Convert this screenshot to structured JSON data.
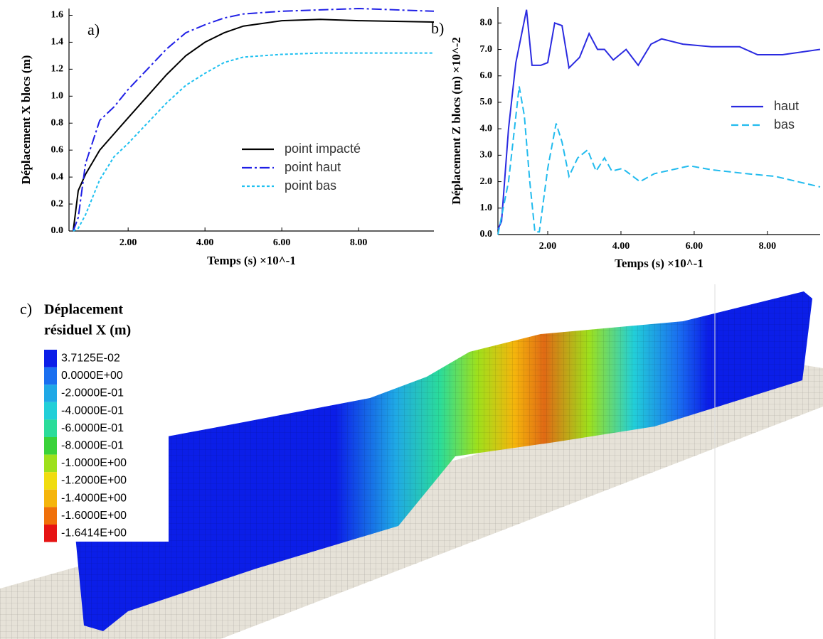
{
  "chart_data": [
    {
      "type": "line",
      "label": "a)",
      "ylabel": "Déplacement X blocs (m)",
      "xlabel": "Temps (s) ×10^-1",
      "xlim": [
        0.46,
        9.96
      ],
      "ylim": [
        0,
        1.65
      ],
      "xticks": [
        {
          "value": 2,
          "label": "2.00"
        },
        {
          "value": 4,
          "label": "4.00"
        },
        {
          "value": 6,
          "label": "6.00"
        },
        {
          "value": 8,
          "label": "8.00"
        }
      ],
      "yticks": [
        {
          "value": 0,
          "label": "0.0"
        },
        0.2,
        0.4,
        0.6,
        0.8,
        {
          "value": 1,
          "label": "1.0"
        },
        1.2,
        1.4,
        1.6
      ],
      "legend": "lower right",
      "series": [
        {
          "name": "point impacté",
          "color": "#000000",
          "dash": "solid",
          "x": [
            0.57,
            0.7,
            0.89,
            1.26,
            1.63,
            2,
            2.5,
            3,
            3.5,
            4,
            4.5,
            5,
            6,
            7,
            8,
            9.96
          ],
          "values": [
            0,
            0.3,
            0.42,
            0.6,
            0.72,
            0.84,
            1.0,
            1.16,
            1.3,
            1.4,
            1.47,
            1.52,
            1.56,
            1.57,
            1.56,
            1.55
          ]
        },
        {
          "name": "point haut",
          "color": "#1f1fe6",
          "dash": "dashdot",
          "x": [
            0.57,
            0.7,
            0.89,
            1.26,
            1.63,
            2,
            2.5,
            3,
            3.5,
            4,
            4.5,
            5,
            6,
            7,
            8,
            9.96
          ],
          "values": [
            0,
            0.1,
            0.5,
            0.82,
            0.92,
            1.05,
            1.2,
            1.35,
            1.47,
            1.53,
            1.58,
            1.61,
            1.63,
            1.64,
            1.65,
            1.63
          ]
        },
        {
          "name": "point bas",
          "color": "#1ec0f0",
          "dash": "dotted",
          "x": [
            0.57,
            0.7,
            0.89,
            1.26,
            1.63,
            2,
            2.5,
            3,
            3.5,
            4,
            4.5,
            5,
            6,
            7,
            8,
            9.96
          ],
          "values": [
            0,
            0.02,
            0.12,
            0.38,
            0.55,
            0.65,
            0.8,
            0.95,
            1.08,
            1.17,
            1.25,
            1.29,
            1.31,
            1.32,
            1.32,
            1.32
          ]
        }
      ]
    },
    {
      "type": "line",
      "label": "b)",
      "ylabel": "Déplacement Z blocs (m) ×10^-2",
      "xlabel": "Temps (s) ×10^-1",
      "xlim": [
        0.64,
        9.44
      ],
      "ylim": [
        0,
        8.6
      ],
      "xticks": [
        {
          "value": 2,
          "label": "2.00"
        },
        {
          "value": 4,
          "label": "4.00"
        },
        {
          "value": 6,
          "label": "6.00"
        },
        {
          "value": 8,
          "label": "8.00"
        }
      ],
      "yticks": [
        {
          "value": 0,
          "label": "0.0"
        },
        {
          "value": 1,
          "label": "1.0"
        },
        {
          "value": 2,
          "label": "2.0"
        },
        {
          "value": 3,
          "label": "3.0"
        },
        {
          "value": 4,
          "label": "4.0"
        },
        {
          "value": 5,
          "label": "5.0"
        },
        {
          "value": 6,
          "label": "6.0"
        },
        {
          "value": 7,
          "label": "7.0"
        },
        {
          "value": 8,
          "label": "8.0"
        }
      ],
      "legend": "center right",
      "series": [
        {
          "name": "haut",
          "color": "#2a2ae0",
          "dash": "solid",
          "x": [
            0.64,
            0.74,
            0.93,
            1.13,
            1.42,
            1.57,
            1.81,
            2.0,
            2.19,
            2.39,
            2.58,
            2.87,
            3.13,
            3.36,
            3.55,
            3.79,
            4.14,
            4.47,
            4.82,
            5.11,
            5.69,
            6.47,
            7.24,
            7.73,
            8.41,
            9.44
          ],
          "values": [
            0.2,
            0.5,
            4,
            6.5,
            8.5,
            6.4,
            6.4,
            6.5,
            8.0,
            7.9,
            6.3,
            6.7,
            7.6,
            7.0,
            7.0,
            6.6,
            7.0,
            6.4,
            7.2,
            7.4,
            7.2,
            7.1,
            7.1,
            6.8,
            6.8,
            7.0
          ]
        },
        {
          "name": "bas",
          "color": "#22bbee",
          "dash": "dashed",
          "x": [
            0.64,
            0.93,
            1.22,
            1.36,
            1.51,
            1.65,
            1.77,
            2.0,
            2.23,
            2.39,
            2.58,
            2.82,
            3.09,
            3.32,
            3.55,
            3.75,
            4.04,
            4.52,
            4.91,
            5.88,
            6.47,
            7.44,
            8.21,
            9.44
          ],
          "values": [
            0,
            2,
            5.6,
            4.5,
            2,
            0.1,
            0.1,
            2.5,
            4.2,
            3.5,
            2.2,
            2.9,
            3.2,
            2.4,
            2.9,
            2.4,
            2.5,
            2.0,
            2.3,
            2.6,
            2.45,
            2.3,
            2.2,
            1.8
          ]
        }
      ]
    }
  ],
  "panel_c": {
    "label": "c)",
    "title": "Déplacement",
    "subtitle": "résiduel X (m)",
    "legend": [
      {
        "label": "3.7125E-02",
        "color": "#0b1ee8"
      },
      {
        "label": "0.0000E+00",
        "color": "#1a6ff0"
      },
      {
        "label": "-2.0000E-01",
        "color": "#1fa8e6"
      },
      {
        "label": "-4.0000E-01",
        "color": "#22cfd8"
      },
      {
        "label": "-6.0000E-01",
        "color": "#2bdc9a"
      },
      {
        "label": "-8.0000E-01",
        "color": "#3ad23a"
      },
      {
        "label": "-1.0000E+00",
        "color": "#9ee01c"
      },
      {
        "label": "-1.2000E+00",
        "color": "#f0dc10"
      },
      {
        "label": "-1.4000E+00",
        "color": "#f5b50c"
      },
      {
        "label": "-1.6000E+00",
        "color": "#f0700a"
      },
      {
        "label": "-1.6414E+00",
        "color": "#e61414"
      }
    ]
  }
}
